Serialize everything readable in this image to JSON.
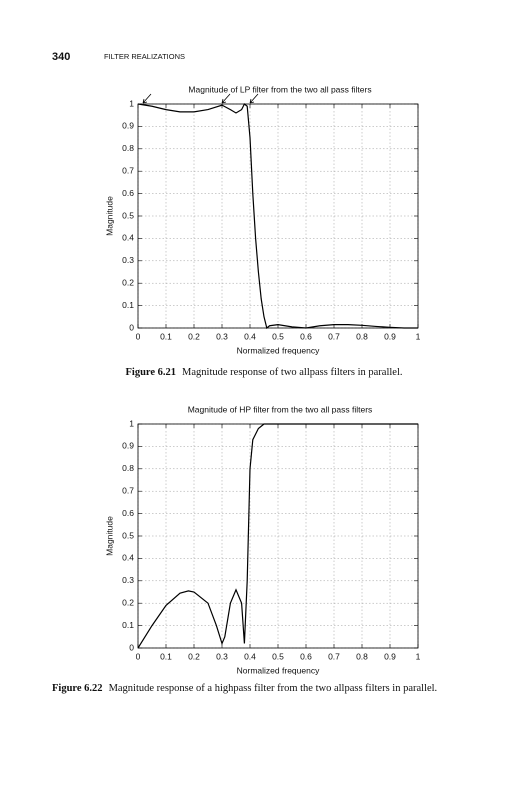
{
  "header": {
    "page_number": "340",
    "section": "FILTER REALIZATIONS"
  },
  "chart_data": [
    {
      "type": "line",
      "title": "Magnitude of LP filter from the two all pass filters",
      "x_label": "Normalized frequency",
      "y_label": "Magnitude",
      "x": [
        0,
        0.05,
        0.1,
        0.15,
        0.2,
        0.25,
        0.3,
        0.33,
        0.35,
        0.37,
        0.38,
        0.39,
        0.4,
        0.41,
        0.42,
        0.43,
        0.44,
        0.45,
        0.46,
        0.47,
        0.5,
        0.55,
        0.6,
        0.65,
        0.7,
        0.75,
        0.8,
        0.85,
        0.9,
        0.95,
        1
      ],
      "series": [
        {
          "color": "#000000",
          "values": [
            1,
            0.99,
            0.975,
            0.965,
            0.965,
            0.975,
            0.995,
            0.975,
            0.96,
            0.975,
            1,
            0.99,
            0.85,
            0.6,
            0.4,
            0.25,
            0.13,
            0.05,
            0.0,
            0.01,
            0.015,
            0.005,
            0,
            0.01,
            0.015,
            0.015,
            0.012,
            0.007,
            0.003,
            0,
            0
          ]
        }
      ],
      "xlim": [
        0,
        1
      ],
      "ylim": [
        0,
        1
      ],
      "xticks": [
        0,
        0.1,
        0.2,
        0.3,
        0.4,
        0.5,
        0.6,
        0.7,
        0.8,
        0.9,
        1
      ],
      "yticks": [
        0,
        0.1,
        0.2,
        0.3,
        0.4,
        0.5,
        0.6,
        0.7,
        0.8,
        0.9,
        1
      ],
      "grid": true
    },
    {
      "type": "line",
      "title": "Magnitude of HP filter from the two all pass filters",
      "x_label": "Normalized frequency",
      "y_label": "Magnitude",
      "x": [
        0,
        0.05,
        0.1,
        0.15,
        0.18,
        0.2,
        0.25,
        0.28,
        0.3,
        0.31,
        0.33,
        0.35,
        0.37,
        0.38,
        0.39,
        0.4,
        0.41,
        0.43,
        0.45,
        0.5,
        0.6,
        0.7,
        0.8,
        0.9,
        1
      ],
      "series": [
        {
          "color": "#000000",
          "values": [
            0,
            0.1,
            0.19,
            0.245,
            0.255,
            0.25,
            0.2,
            0.1,
            0.02,
            0.05,
            0.2,
            0.26,
            0.2,
            0.02,
            0.3,
            0.8,
            0.93,
            0.98,
            1,
            1,
            1,
            1,
            1,
            1,
            1
          ]
        }
      ],
      "xlim": [
        0,
        1
      ],
      "ylim": [
        0,
        1
      ],
      "xticks": [
        0,
        0.1,
        0.2,
        0.3,
        0.4,
        0.5,
        0.6,
        0.7,
        0.8,
        0.9,
        1
      ],
      "yticks": [
        0,
        0.1,
        0.2,
        0.3,
        0.4,
        0.5,
        0.6,
        0.7,
        0.8,
        0.9,
        1
      ],
      "grid": true
    }
  ],
  "figures": [
    {
      "label": "Figure 6.21",
      "caption": "Magnitude response of two allpass filters in parallel."
    },
    {
      "label": "Figure 6.22",
      "caption": "Magnitude response of a highpass filter from the two allpass filters in parallel."
    }
  ]
}
